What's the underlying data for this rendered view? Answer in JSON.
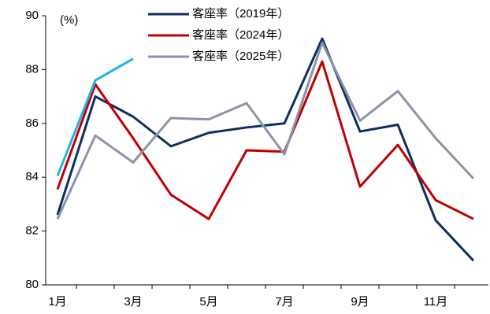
{
  "chart_data": {
    "type": "line",
    "y_label": "(%)",
    "categories": [
      "1月",
      null,
      "3月",
      null,
      "5月",
      null,
      "7月",
      null,
      "9月",
      null,
      "11月",
      null
    ],
    "series": [
      {
        "name": "客座率（2019年）",
        "color": "#0b2e5e",
        "values": [
          82.6,
          87.0,
          86.25,
          85.15,
          85.65,
          85.85,
          86.0,
          89.15,
          85.7,
          85.95,
          82.4,
          80.9
        ]
      },
      {
        "name": "客座率（2024年）",
        "color": "#c00000",
        "values": [
          83.55,
          87.45,
          85.45,
          83.35,
          82.45,
          85.0,
          84.95,
          88.3,
          83.65,
          85.2,
          83.15,
          82.45
        ]
      },
      {
        "name": "客座率（2025年）",
        "color": "#8c93a8",
        "values": [
          82.45,
          85.55,
          84.55,
          86.2,
          86.15,
          86.75,
          84.85,
          89.0,
          86.1,
          87.2,
          85.45,
          83.95
        ]
      },
      {
        "color": "#1eb4e6",
        "values": [
          84.05,
          87.6,
          88.4,
          null,
          null,
          null,
          null,
          null,
          null,
          null,
          null,
          null
        ]
      }
    ],
    "ylim": [
      80,
      90
    ],
    "yticks": [
      80,
      82,
      84,
      86,
      88,
      90
    ]
  }
}
